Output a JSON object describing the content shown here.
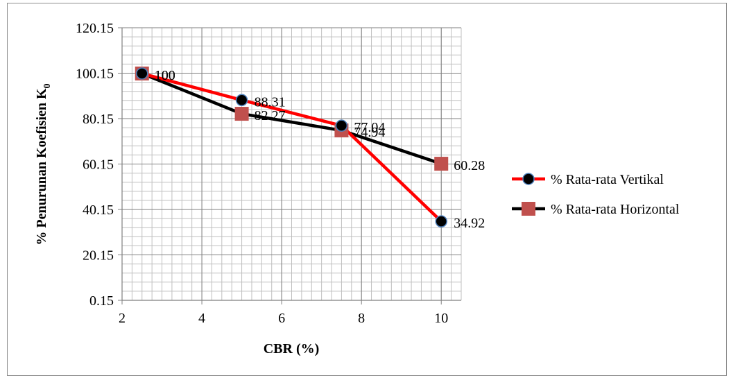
{
  "chart_data": {
    "type": "line",
    "xlabel": "CBR (%)",
    "ylabel_main": "% Penurunan Koefisien K",
    "ylabel_sub": "0",
    "xlim": [
      2,
      10.5
    ],
    "ylim": [
      0.15,
      120.15
    ],
    "x_ticks": [
      2,
      4,
      6,
      8,
      10
    ],
    "y_ticks": [
      0.15,
      20.15,
      40.15,
      60.15,
      80.15,
      100.15,
      120.15
    ],
    "x_tick_labels": [
      "2",
      "4",
      "6",
      "8",
      "10"
    ],
    "y_tick_labels": [
      "0.15",
      "20.15",
      "40.15",
      "60.15",
      "80.15",
      "100.15",
      "120.15"
    ],
    "grid": true,
    "legend_position": "right",
    "series": [
      {
        "name": "% Rata-rata Vertikal",
        "color": "#ff0000",
        "marker": "circle",
        "marker_fill": "#000000",
        "x": [
          2.5,
          5,
          7.5,
          10
        ],
        "values": [
          100,
          88.31,
          77.04,
          34.92
        ],
        "labels": [
          "100",
          "88.31",
          "77.04",
          "34.92"
        ]
      },
      {
        "name": "% Rata-rata Horizontal",
        "color": "#000000",
        "marker": "square",
        "marker_fill": "#c0504d",
        "x": [
          2.5,
          5,
          7.5,
          10
        ],
        "values": [
          100,
          82.27,
          74.94,
          60.28
        ],
        "labels": [
          "100",
          "82.27",
          "74.94",
          "60.28"
        ]
      }
    ]
  }
}
